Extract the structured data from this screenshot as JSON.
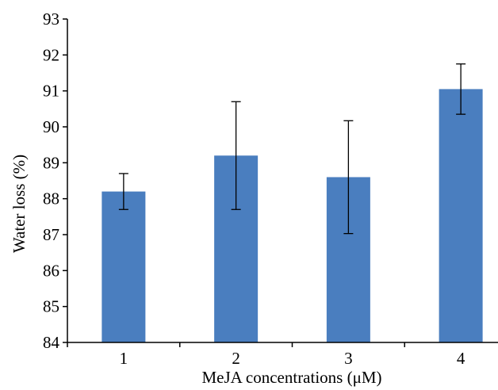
{
  "chart_data": {
    "type": "bar",
    "categories": [
      "1",
      "2",
      "3",
      "4"
    ],
    "values": [
      88.2,
      89.2,
      88.6,
      91.05
    ],
    "error": [
      0.5,
      1.5,
      1.57,
      0.7
    ],
    "xlabel": "MeJA concentrations (μM)",
    "ylabel": "Water loss (%)",
    "ylim": [
      84,
      93
    ],
    "yticks": [
      84,
      85,
      86,
      87,
      88,
      89,
      90,
      91,
      92,
      93
    ],
    "grid": false,
    "legend": "none",
    "bar_color": "#4a7ebf",
    "error_bar_color": "#000000"
  }
}
